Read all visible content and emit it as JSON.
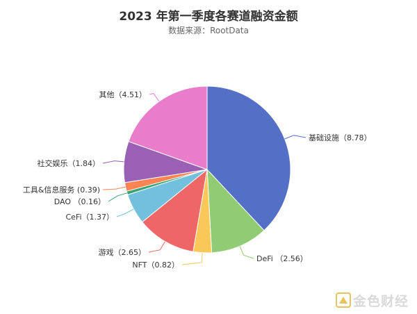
{
  "chart_data": {
    "type": "pie",
    "title": "2023 年第一季度各赛道融资金额",
    "subtitle": "数据来源：RootData",
    "slices": [
      {
        "name": "基础设施",
        "value": 8.78,
        "label": "基础设施（8.78）",
        "color": "#5470c6"
      },
      {
        "name": "DeFi",
        "value": 2.56,
        "label": "DeFi （2.56）",
        "color": "#91cc75"
      },
      {
        "name": "NFT",
        "value": 0.82,
        "label": "NFT（0.82）",
        "color": "#fac858"
      },
      {
        "name": "游戏",
        "value": 2.65,
        "label": "游戏（2.65）",
        "color": "#ee6666"
      },
      {
        "name": "CeFi",
        "value": 1.37,
        "label": "CeFi（1.37）",
        "color": "#73c0de"
      },
      {
        "name": "DAO",
        "value": 0.16,
        "label": "DAO （0.16）",
        "color": "#3ba272"
      },
      {
        "name": "工具&信息服务",
        "value": 0.39,
        "label": "工具&信息服务 (0.39)",
        "color": "#fc8452"
      },
      {
        "name": "社交娱乐",
        "value": 1.84,
        "label": "社交娱乐（1.84）",
        "color": "#9a60b4"
      },
      {
        "name": "其他",
        "value": 4.51,
        "label": "其他（4.51）",
        "color": "#ea7ccc"
      }
    ]
  },
  "watermark": {
    "text": "金色财经",
    "logo_icon": "gold-square-logo-icon",
    "color": "#d9d9d9"
  }
}
